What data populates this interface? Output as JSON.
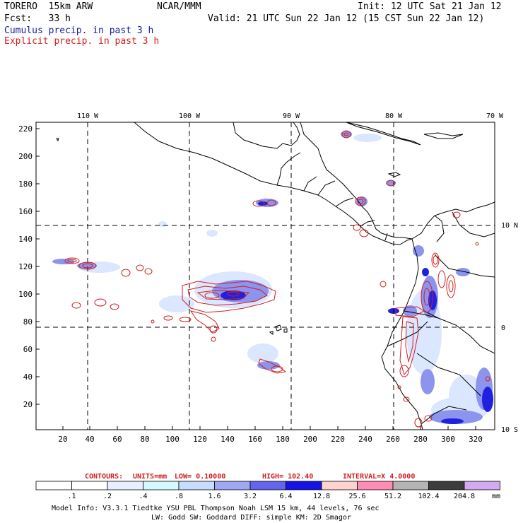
{
  "header": {
    "model": "TORERO  15km ARW",
    "org": "NCAR/MMM",
    "init": "Init: 12 UTC Sat 21 Jan 12",
    "fcst": "Fcst:   33 h",
    "valid": "Valid: 21 UTC Sun 22 Jan 12 (15 CST Sun 22 Jan 12)",
    "legend_cumulus": "Cumulus precip. in past 3 h",
    "legend_explicit": "Explicit precip. in past 3 h",
    "color_cumulus": "#1a1aa0",
    "color_explicit": "#d21e1e"
  },
  "map": {
    "lon_labels": [
      "110 W",
      "100 W",
      "90 W",
      "80 W",
      "70 W"
    ],
    "lat_labels": [
      "10 N",
      "0",
      "10 S"
    ],
    "y_ticks": [
      220,
      200,
      180,
      160,
      140,
      120,
      100,
      80,
      60,
      40,
      20
    ],
    "x_ticks": [
      20,
      40,
      60,
      80,
      100,
      120,
      140,
      160,
      180,
      200,
      220,
      240,
      260,
      280,
      300,
      320
    ]
  },
  "contour_info": {
    "label": "CONTOURS:",
    "units": "UNITS=mm",
    "low": "LOW= 0.10000",
    "high": "HIGH=  102.40",
    "interval": "INTERVAL=X  4.0000"
  },
  "colorbar": {
    "labels": [
      ".1",
      ".2",
      ".4",
      ".8",
      "1.6",
      "3.2",
      "6.4",
      "12.8",
      "25.6",
      "51.2",
      "102.4",
      "204.8"
    ],
    "unit": "mm",
    "colors": [
      "#ffffff",
      "#ffffff",
      "#e8f0ff",
      "#d4faff",
      "#c8dcff",
      "#a0a8f4",
      "#6464ec",
      "#1414e6",
      "#ffd2d2",
      "#ff8cb4",
      "#b4b4b4",
      "#3c3c3c",
      "#d2aaf0"
    ]
  },
  "footer": {
    "line1": "Model Info: V3.3.1   Tiedtke YSU PBL  Thompson    Noah LSM  15 km,   44 levels,   76 sec",
    "line2": "LW: Godd SW: Goddard DIFF: simple KM: 2D Smagor"
  }
}
